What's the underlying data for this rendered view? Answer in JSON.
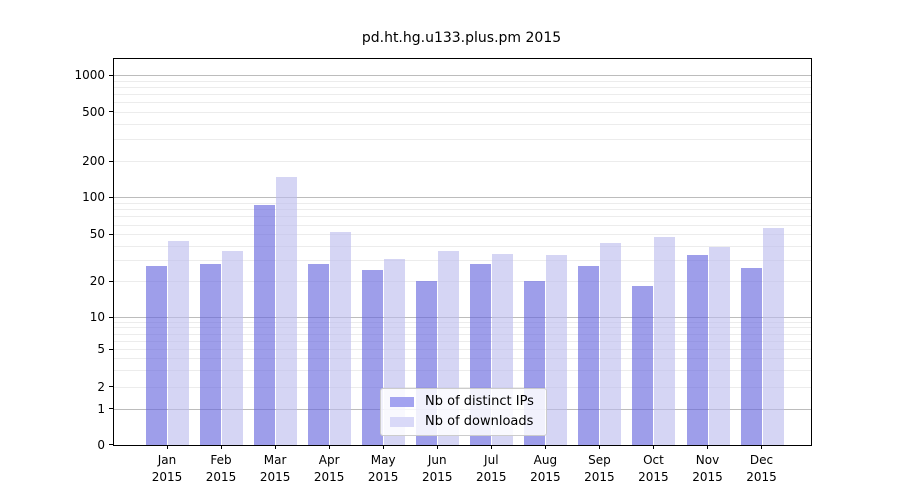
{
  "chart_data": {
    "type": "bar",
    "title": "pd.ht.hg.u133.plus.pm 2015",
    "categories": [
      "Jan",
      "Feb",
      "Mar",
      "Apr",
      "May",
      "Jun",
      "Jul",
      "Aug",
      "Sep",
      "Oct",
      "Nov",
      "Dec"
    ],
    "year": "2015",
    "series": [
      {
        "name": "Nb of distinct IPs",
        "color": "#a3a3f0",
        "fill": "rgba(102,102,221,0.63)",
        "values": [
          27,
          28,
          87,
          28,
          25,
          20,
          28,
          20,
          27,
          18,
          33,
          26
        ]
      },
      {
        "name": "Nb of downloads",
        "color": "#d9d9f8",
        "fill": "rgba(187,187,238,0.62)",
        "values": [
          44,
          36,
          147,
          52,
          31,
          36,
          34,
          33,
          42,
          47,
          39,
          56
        ]
      }
    ],
    "xlabel": "",
    "ylabel": "",
    "y_axis": {
      "scale": "symlog",
      "ticks": [
        0,
        1,
        2,
        5,
        10,
        20,
        50,
        100,
        200,
        500,
        1000
      ],
      "ylim": [
        0,
        1400
      ]
    },
    "grid": true,
    "legend_position": "lower-center"
  }
}
